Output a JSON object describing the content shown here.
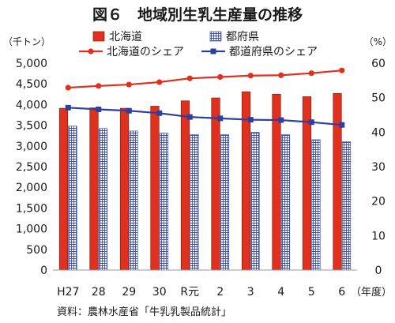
{
  "chart_data": {
    "type": "bar",
    "title": "図６　地域別生乳生産量の推移",
    "categories": [
      "H27",
      "28",
      "29",
      "30",
      "R元",
      "2",
      "3",
      "4",
      "5",
      "6"
    ],
    "x_unit": "（年度）",
    "y_left_unit": "（千トン）",
    "y_right_unit": "（%）",
    "y_left": {
      "min": 0,
      "max": 5000,
      "step": 500,
      "tick_labels": [
        "0",
        "500",
        "1,000",
        "1,500",
        "2,000",
        "2,500",
        "3,000",
        "3,500",
        "4,000",
        "4,500",
        "5,000"
      ]
    },
    "y_right": {
      "min": 0,
      "max": 60,
      "step": 10,
      "tick_labels": [
        "0",
        "10",
        "20",
        "30",
        "40",
        "50",
        "60"
      ]
    },
    "bar_series": [
      {
        "name": "北海道",
        "color": "#e0301e",
        "pattern": "solid",
        "values": [
          3910,
          3920,
          3910,
          3960,
          4090,
          4160,
          4310,
          4250,
          4190,
          4270
        ]
      },
      {
        "name": "都府県",
        "color": "#3f51b5",
        "pattern": "grid",
        "values": [
          3480,
          3420,
          3360,
          3310,
          3270,
          3270,
          3330,
          3270,
          3150,
          3100
        ]
      }
    ],
    "line_series": [
      {
        "name": "北海道のシェア",
        "color": "#e0301e",
        "marker": "circle",
        "axis": "right",
        "values": [
          52.9,
          53.4,
          53.8,
          54.5,
          55.6,
          56.0,
          56.4,
          56.5,
          57.1,
          57.9
        ]
      },
      {
        "name": "都道府県のシェア",
        "color": "#2f3f9e",
        "marker": "square",
        "axis": "right",
        "values": [
          47.1,
          46.6,
          46.2,
          45.5,
          44.4,
          44.0,
          43.6,
          43.5,
          42.9,
          42.1
        ]
      }
    ],
    "grid": false,
    "legend_position": "top"
  },
  "source_note": "資料：農林水産省「牛乳乳製品統計」"
}
